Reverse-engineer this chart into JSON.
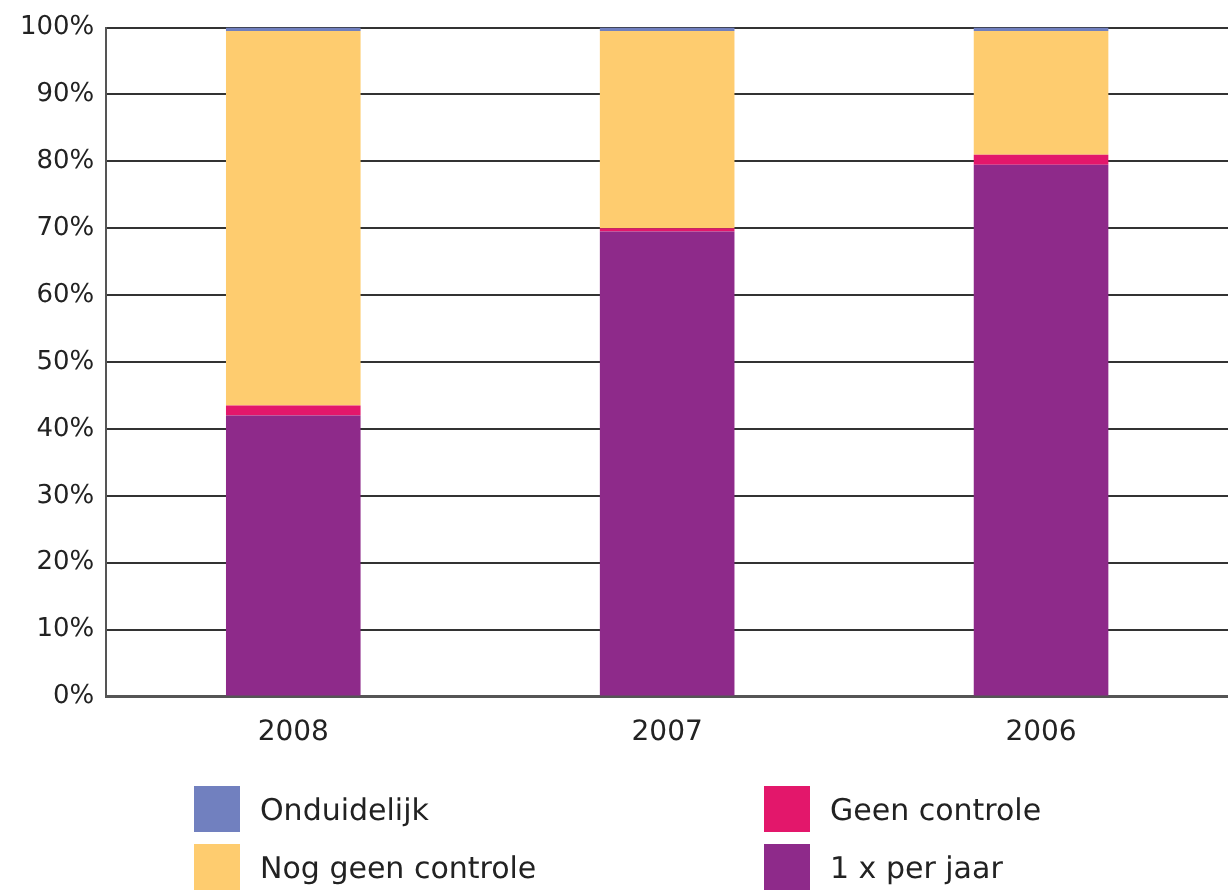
{
  "chart_data": {
    "type": "bar",
    "stacked": true,
    "categories": [
      "2008",
      "2007",
      "2006"
    ],
    "series": [
      {
        "name": "1 x per jaar",
        "color": "#8e2a8a",
        "values": [
          42,
          69.5,
          79.5
        ]
      },
      {
        "name": "Geen controle",
        "color": "#e3176b",
        "values": [
          1.5,
          0.5,
          1.5
        ]
      },
      {
        "name": "Nog geen controle",
        "color": "#fecc6f",
        "values": [
          56,
          29.5,
          18.5
        ]
      },
      {
        "name": "Onduidelijk",
        "color": "#7180bf",
        "values": [
          0.5,
          0.5,
          0.5
        ]
      }
    ],
    "ylim": [
      0,
      100
    ],
    "yticks": [
      {
        "value": 0,
        "label": "0%"
      },
      {
        "value": 10,
        "label": "10%"
      },
      {
        "value": 20,
        "label": "20%"
      },
      {
        "value": 30,
        "label": "30%"
      },
      {
        "value": 40,
        "label": "40%"
      },
      {
        "value": 50,
        "label": "50%"
      },
      {
        "value": 60,
        "label": "60%"
      },
      {
        "value": 70,
        "label": "70%"
      },
      {
        "value": 80,
        "label": "80%"
      },
      {
        "value": 90,
        "label": "90%"
      },
      {
        "value": 100,
        "label": "100%"
      }
    ],
    "grid": "y",
    "legend": "bottom"
  }
}
